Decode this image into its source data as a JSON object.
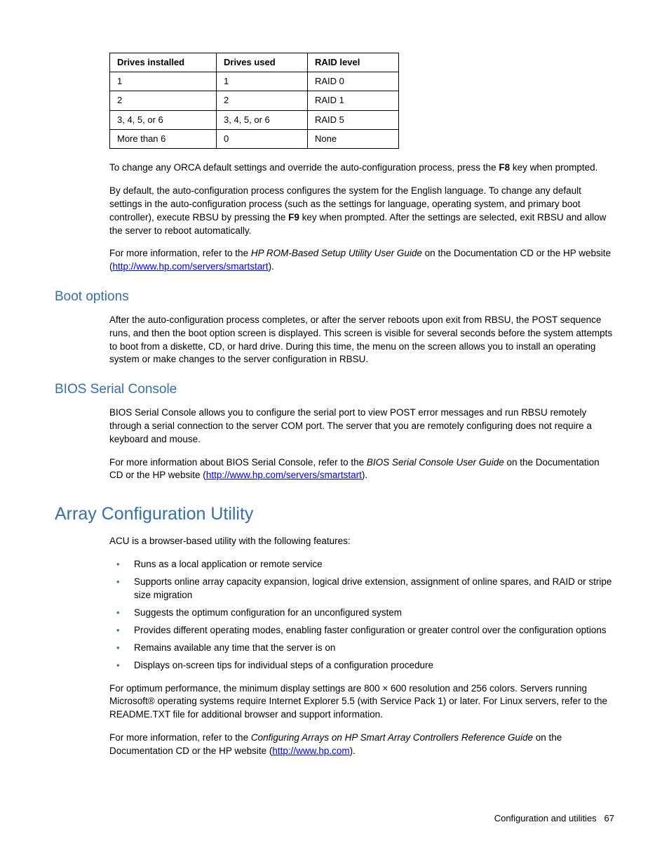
{
  "table": {
    "headers": [
      "Drives installed",
      "Drives used",
      "RAID level"
    ],
    "rows": [
      [
        "1",
        "1",
        "RAID 0"
      ],
      [
        "2",
        "2",
        "RAID 1"
      ],
      [
        "3, 4, 5, or 6",
        "3, 4, 5, or 6",
        "RAID 5"
      ],
      [
        "More than 6",
        "0",
        "None"
      ]
    ]
  },
  "para1_a": "To change any ORCA default settings and override the auto-configuration process, press the ",
  "para1_b": "F8",
  "para1_c": " key when prompted.",
  "para2_a": "By default, the auto-configuration process configures the system for the English language. To change any default settings in the auto-configuration process (such as the settings for language, operating system, and primary boot controller), execute RBSU by pressing the ",
  "para2_b": "F9",
  "para2_c": " key when prompted. After the settings are selected, exit RBSU and allow the server to reboot automatically.",
  "para3_a": "For more information, refer to the ",
  "para3_b": "HP ROM-Based Setup Utility User Guide",
  "para3_c": " on the Documentation CD or the HP website (",
  "para3_link": "http://www.hp.com/servers/smartstart",
  "para3_d": ").",
  "boot_heading": "Boot options",
  "boot_para": "After the auto-configuration process completes, or after the server reboots upon exit from RBSU, the POST sequence runs, and then the boot option screen is displayed. This screen is visible for several seconds before the system attempts to boot from a diskette, CD, or hard drive. During this time, the menu on the screen allows you to install an operating system or make changes to the server configuration in RBSU.",
  "bios_heading": "BIOS Serial Console",
  "bios_para1": "BIOS Serial Console allows you to configure the serial port to view POST error messages and run RBSU remotely through a serial connection to the server COM port. The server that you are remotely configuring does not require a keyboard and mouse.",
  "bios_para2_a": "For more information about BIOS Serial Console, refer to the ",
  "bios_para2_b": "BIOS Serial Console User Guide",
  "bios_para2_c": " on the Documentation CD or the HP website (",
  "bios_para2_link": "http://www.hp.com/servers/smartstart",
  "bios_para2_d": ").",
  "acu_heading": "Array Configuration Utility",
  "acu_intro": "ACU is a browser-based utility with the following features:",
  "acu_bullets": [
    "Runs as a local application or remote service",
    "Supports online array capacity expansion, logical drive extension, assignment of online spares, and RAID or stripe size migration",
    "Suggests the optimum configuration for an unconfigured system",
    "Provides different operating modes, enabling faster configuration or greater control over the configuration options",
    "Remains available any time that the server is on",
    "Displays on-screen tips for individual steps of a configuration procedure"
  ],
  "acu_para1": "For optimum performance, the minimum display settings are 800 × 600 resolution and 256 colors. Servers running Microsoft® operating systems require Internet Explorer 5.5 (with Service Pack 1) or later. For Linux servers, refer to the README.TXT file for additional browser and support information.",
  "acu_para2_a": "For more information, refer to the ",
  "acu_para2_b": "Configuring Arrays on HP Smart Array Controllers Reference Guide",
  "acu_para2_c": " on the Documentation CD or the HP website (",
  "acu_para2_link": "http://www.hp.com",
  "acu_para2_d": ").",
  "footer_text": "Configuration and utilities",
  "footer_page": "67"
}
